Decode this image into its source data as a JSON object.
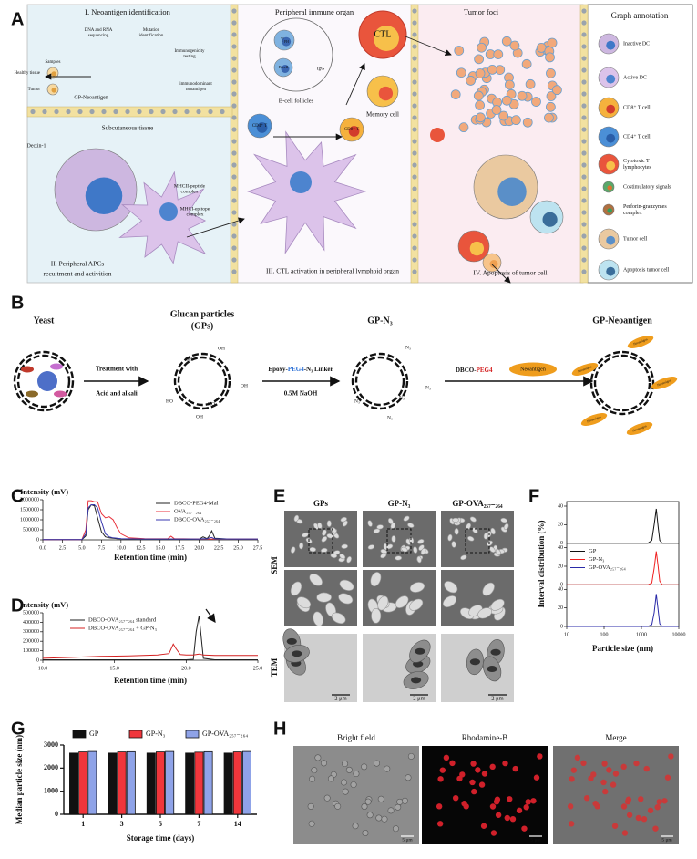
{
  "panel_labels": [
    "A",
    "B",
    "C",
    "D",
    "E",
    "F",
    "G",
    "H"
  ],
  "panel_a": {
    "section_titles": [
      "I. Neoantigen identification",
      "Peripheral immune organ",
      "Tumor foci"
    ],
    "sequencing": [
      "DNA and RNA",
      "sequencing"
    ],
    "mutation": [
      "Mutation",
      "identification"
    ],
    "samples": "Samples",
    "healthy_tissue": "Healthy tissue",
    "tumor": "Tumor",
    "immunogenicity": [
      "Immunogenicity",
      "testing"
    ],
    "immunodominant": [
      "immunodominant",
      "neoantigen"
    ],
    "gp_neoantigen": "GP-Neoantigen",
    "subcutaneous": "Subcutaneous tissue",
    "dectin": "Dectin-1",
    "mhcii": [
      "MHCII-peptide",
      "complex"
    ],
    "mhci": [
      "MHCI-epitope",
      "complex"
    ],
    "step_2": [
      "II. Peripheral APCs",
      "recuitment and activition"
    ],
    "b_cell_follicles": "B-cell follicles",
    "tfh": [
      "T",
      "FH"
    ],
    "b_cell": "B cell",
    "igg": "IgG",
    "cd4": "CD4⁺ T",
    "cd8": "CD8⁺ T",
    "ctl": "CTL",
    "memory_cell": "Memory cell",
    "step_3": "III. CTL activation in peripheral lymphoid organ",
    "step_4": "IV. Apoptosis of  tumor cell",
    "annotation_title": "Graph annotation",
    "annotations": [
      [
        "Inactive DC"
      ],
      [
        "Active DC"
      ],
      [
        "CD8⁺ T cell"
      ],
      [
        "CD4⁺ T cell"
      ],
      [
        "Cytotoxic T",
        "lymphocytes"
      ],
      [
        "Costimulatory signals"
      ],
      [
        "Perforin-granzymes",
        "complex"
      ],
      [
        "Tumor cell"
      ],
      [
        "Apoptosis tumor cell"
      ]
    ]
  },
  "panel_b": {
    "yeast": "Yeast",
    "gps": [
      "Glucan particles",
      "(GPs)"
    ],
    "treatment": [
      "Treatment with",
      "Acid and alkali"
    ],
    "oh": [
      "OH",
      "OH",
      "OH",
      "HO",
      "HO",
      "OH"
    ],
    "linker": [
      "Epoxy-",
      "PEG4",
      "-N₃ Linker"
    ],
    "naoh": "0.5M NaOH",
    "gp_n3": "GP-N₃",
    "n3": [
      "N₃",
      "N₃",
      "N₃",
      "N₃",
      "N₃",
      "N₃"
    ],
    "dbco": [
      "DBCO-",
      "PEG4"
    ],
    "neoantigen": "Neoantigen",
    "gp_neoantigen": "GP-Neoantigen",
    "neoantigen_tags": [
      "Neoantigen",
      "Neoantigen",
      "Neoantigen",
      "Neoantigen",
      "Neoantigen"
    ]
  },
  "panel_e": {
    "columns": [
      "GPs",
      "GP-N₃",
      "GP-OVA₂₅₇₋₂₆₄"
    ],
    "rows": [
      "SEM",
      "TEM"
    ],
    "scale_bars": [
      "2 μm",
      "2 μm",
      "2 μm"
    ]
  },
  "panel_h": {
    "columns": [
      "Bright field",
      "Rhodamine-B",
      "Merge"
    ],
    "scale_bars": [
      "5 μm",
      "5 μm",
      "5 μm"
    ]
  },
  "chart_data": [
    {
      "type": "line",
      "title": "Intensity (mV)",
      "x_label": "Retention time (min)",
      "legend": "upper right",
      "x": [
        0,
        5,
        5.5,
        5.8,
        6.2,
        6.6,
        7,
        7.5,
        8,
        8.5,
        9,
        9.5,
        10,
        11,
        13,
        15,
        16,
        16.4,
        16.8,
        18,
        20,
        20.5,
        21,
        21.3,
        21.6,
        22,
        24,
        27.5
      ],
      "series": [
        {
          "name": "DBCO-PEG4-Mal",
          "color": "#222222",
          "values": [
            10000,
            15000,
            200000,
            1500000,
            1750000,
            1700000,
            1100000,
            400000,
            150000,
            100000,
            80000,
            60000,
            50000,
            40000,
            30000,
            30000,
            30000,
            30000,
            30000,
            30000,
            30000,
            150000,
            60000,
            200000,
            450000,
            80000,
            30000,
            30000
          ]
        },
        {
          "name": "OVA₂₅₇₋₂₆₄",
          "color": "#e8323c",
          "values": [
            10000,
            15000,
            500000,
            1950000,
            1950000,
            1900000,
            1900000,
            1300000,
            1100000,
            1150000,
            1000000,
            600000,
            300000,
            100000,
            60000,
            50000,
            60000,
            180000,
            60000,
            50000,
            40000,
            40000,
            40000,
            40000,
            40000,
            40000,
            40000,
            40000
          ]
        },
        {
          "name": "DBCO-OVA₂₅₇₋₂₆₄",
          "color": "#3a3ab0",
          "values": [
            10000,
            15000,
            300000,
            1600000,
            1750000,
            1750000,
            1600000,
            900000,
            300000,
            150000,
            100000,
            80000,
            60000,
            50000,
            40000,
            40000,
            40000,
            40000,
            40000,
            40000,
            40000,
            60000,
            50000,
            100000,
            120000,
            50000,
            40000,
            40000
          ]
        }
      ],
      "xlim": [
        0,
        27.5
      ],
      "xticks": [
        {
          "value": 0,
          "label": "0.0"
        },
        2.5,
        {
          "value": 5,
          "label": "5.0"
        },
        7.5,
        {
          "value": 10,
          "label": "10.0"
        },
        12.5,
        {
          "value": 15,
          "label": "15.0"
        },
        17.5,
        {
          "value": 20,
          "label": "20.0"
        },
        22.5,
        {
          "value": 25,
          "label": "25.0"
        },
        27.5
      ],
      "ylim": [
        0,
        2000000
      ],
      "yticks": [
        0,
        500000,
        1000000,
        1500000,
        2000000
      ]
    },
    {
      "type": "line",
      "title": "Intensity (mV)",
      "x_label": "Retention time (min)",
      "legend": "upper left",
      "x": [
        10,
        12,
        14,
        16,
        18,
        18.8,
        19.1,
        19.3,
        19.6,
        20,
        20.5,
        20.7,
        20.9,
        21.2,
        22,
        25
      ],
      "series": [
        {
          "name": "DBCO-OVA₂₅₇₋₂₆₄ standard",
          "color": "#222222",
          "values": [
            5000,
            5000,
            5000,
            5000,
            5000,
            5000,
            5000,
            5000,
            5000,
            5000,
            10000,
            300000,
            470000,
            20000,
            5000,
            5000
          ]
        },
        {
          "name": "DBCO-OVA₂₅₇₋₂₆₄ + GP-N₃",
          "color": "#d42020",
          "values": [
            20000,
            30000,
            40000,
            45000,
            55000,
            70000,
            170000,
            120000,
            60000,
            55000,
            55000,
            60000,
            65000,
            55000,
            50000,
            50000
          ]
        }
      ],
      "xlim": [
        10,
        25
      ],
      "xticks": [
        {
          "value": 10,
          "label": "10.0"
        },
        {
          "value": 15,
          "label": "15.0"
        },
        {
          "value": 20,
          "label": "20.0"
        },
        {
          "value": 25,
          "label": "25.0"
        }
      ],
      "ylim": [
        0,
        500000
      ],
      "yticks": [
        0,
        100000,
        200000,
        300000,
        400000,
        500000
      ]
    },
    {
      "type": "line",
      "subplots": true,
      "x_log": true,
      "x_label": "Particle size (nm)",
      "y_label": "Interval distribution (%)",
      "legend": "center left",
      "x": [
        10,
        1500,
        1900,
        2200,
        2500,
        2800,
        3100,
        3600,
        10000
      ],
      "series": [
        {
          "name": "GP",
          "color": "#111111",
          "values": [
            0,
            0,
            3,
            20,
            37,
            18,
            3,
            0,
            0
          ]
        },
        {
          "name": "GP-N₃",
          "color": "#f02020",
          "values": [
            0,
            0,
            2,
            18,
            36,
            20,
            4,
            0,
            0
          ]
        },
        {
          "name": "GP-OVA₂₅₇₋₂₆₄",
          "color": "#2a2aa8",
          "values": [
            0,
            0,
            2,
            15,
            35,
            18,
            3,
            0,
            0
          ]
        }
      ],
      "xlim": [
        10,
        10000
      ],
      "xticks": [
        10,
        100,
        1000,
        10000
      ],
      "ylim": [
        0,
        40
      ],
      "yticks": [
        0,
        20,
        40
      ]
    },
    {
      "type": "bar",
      "x_label": "Storage time (days)",
      "y_label": "Median particle size (nm)",
      "legend": "upper center",
      "categories": [
        "1",
        "3",
        "5",
        "7",
        "14"
      ],
      "series": [
        {
          "name": "GP",
          "color": "#111111",
          "values": [
            2650,
            2650,
            2650,
            2650,
            2650
          ]
        },
        {
          "name": "GP-N₃",
          "color": "#f0363c",
          "values": [
            2700,
            2700,
            2700,
            2690,
            2700
          ]
        },
        {
          "name": "GP-OVA₂₅₇₋₂₆₄",
          "color": "#8fa3e8",
          "values": [
            2720,
            2710,
            2720,
            2710,
            2720
          ]
        }
      ],
      "ylim": [
        0,
        3000
      ],
      "yticks": [
        0,
        1000,
        2000,
        3000
      ]
    }
  ]
}
